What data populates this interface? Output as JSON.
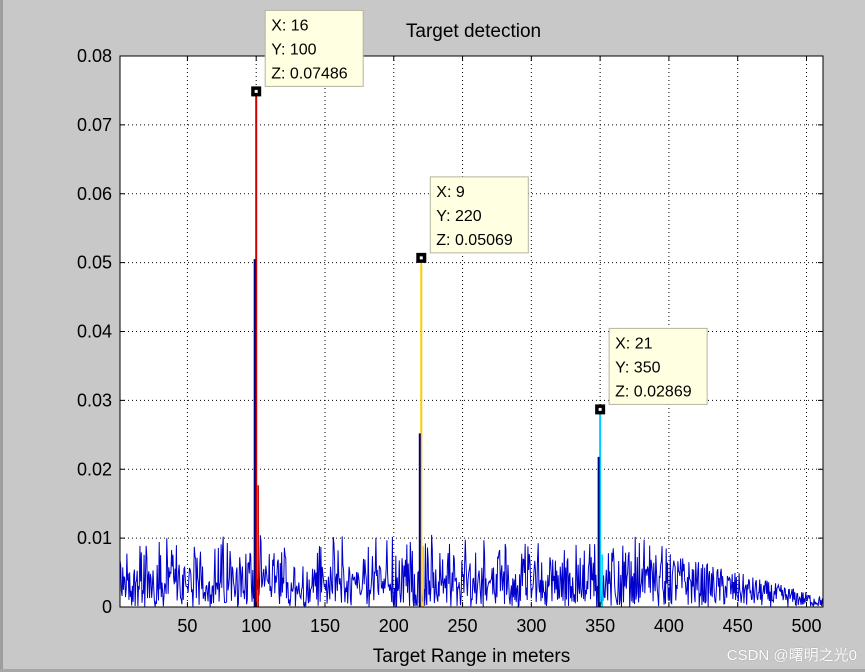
{
  "watermark": "CSDN @曙明之光0",
  "colors": {
    "background": "#c8c8c8",
    "axes_bg": "#ffffff",
    "noise": "#0000cc",
    "datatip_bg": "#ffffe1"
  },
  "chart_data": {
    "type": "line",
    "title": "Target detection",
    "xlabel": "Target Range in meters",
    "ylabel": "",
    "xlim": [
      1,
      512
    ],
    "ylim": [
      0,
      0.08
    ],
    "xticks": [
      50,
      100,
      150,
      200,
      250,
      300,
      350,
      400,
      450,
      500
    ],
    "yticks": [
      0,
      0.01,
      0.02,
      0.03,
      0.04,
      0.05,
      0.06,
      0.07,
      0.08
    ],
    "ytick_labels": [
      "0",
      "0.01",
      "0.02",
      "0.03",
      "0.04",
      "0.05",
      "0.06",
      "0.07",
      "0.08"
    ],
    "grid": true,
    "noise_floor": {
      "color": "#0000cc",
      "x_start": 1,
      "x_end": 512,
      "max": 0.0105,
      "tail_max": 0.0015
    },
    "peaks": [
      {
        "x": 100,
        "y": 0.07486,
        "color": "#cc0000",
        "side_peak": 0.0505,
        "tip": [
          "X: 16",
          "Y: 100",
          "Z: 0.07486"
        ],
        "tip_side": "right"
      },
      {
        "x": 220,
        "y": 0.05069,
        "color": "#ffcc00",
        "side_peak": 0.0252,
        "tip": [
          "X: 9",
          "Y: 220",
          "Z: 0.05069"
        ],
        "tip_side": "right"
      },
      {
        "x": 350,
        "y": 0.02869,
        "color": "#00ccff",
        "side_peak": 0.0218,
        "tip": [
          "X: 21",
          "Y: 350",
          "Z: 0.02869"
        ],
        "tip_side": "right"
      }
    ]
  }
}
